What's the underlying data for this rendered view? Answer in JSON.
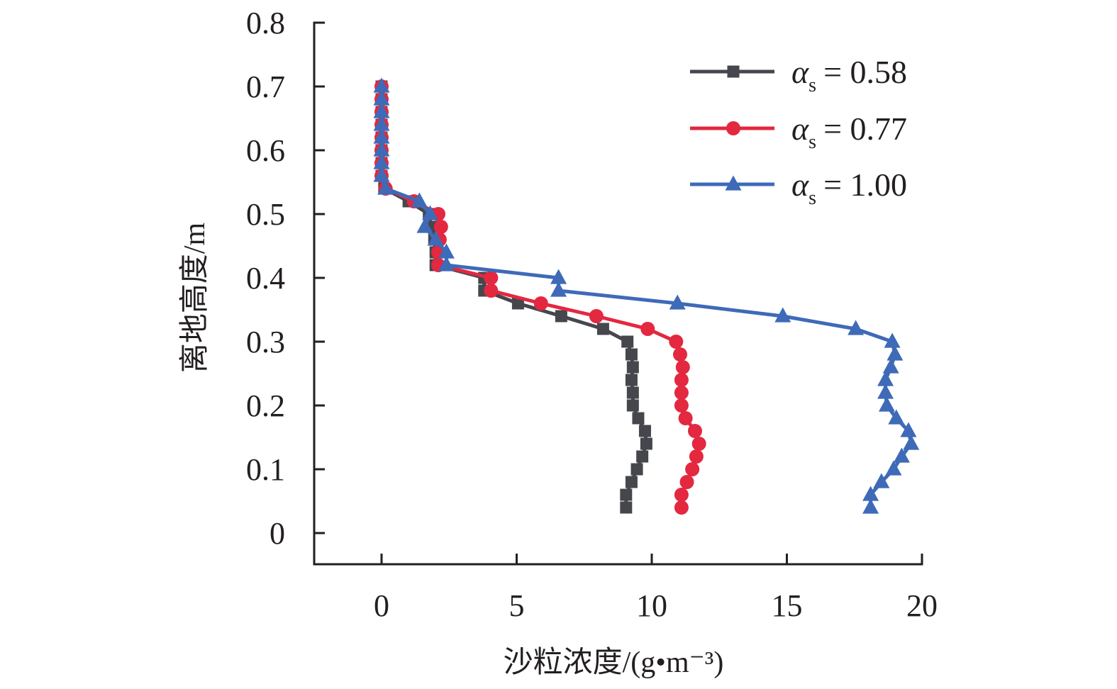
{
  "chart_data": {
    "type": "line",
    "title": "",
    "xlabel": "沙粒浓度/(g•m⁻³)",
    "ylabel": "离地高度/m",
    "xlim": [
      -2.5,
      20
    ],
    "ylim": [
      0,
      0.8
    ],
    "xticks": [
      0,
      5,
      10,
      15,
      20
    ],
    "xtick_labels": [
      "0",
      "5",
      "10",
      "15",
      "20"
    ],
    "yticks": [
      0,
      0.1,
      0.2,
      0.3,
      0.4,
      0.5,
      0.6,
      0.7,
      0.8
    ],
    "ytick_labels": [
      "0",
      "0.1",
      "0.2",
      "0.3",
      "0.4",
      "0.5",
      "0.6",
      "0.7",
      "0.8"
    ],
    "grid": false,
    "legend_position": "top-right",
    "heights": [
      0.7,
      0.68,
      0.66,
      0.64,
      0.62,
      0.6,
      0.58,
      0.56,
      0.54,
      0.52,
      0.5,
      0.48,
      0.46,
      0.44,
      0.42,
      0.4,
      0.38,
      0.36,
      0.34,
      0.32,
      0.3,
      0.28,
      0.26,
      0.24,
      0.22,
      0.2,
      0.18,
      0.16,
      0.14,
      0.12,
      0.1,
      0.08,
      0.06,
      0.04
    ],
    "series": [
      {
        "name": "αs = 0.58",
        "legend_symbol": "α",
        "legend_sub": "s",
        "legend_value": "= 0.58",
        "marker": "square",
        "color": "#45474d",
        "values": [
          0,
          0,
          0,
          0,
          0,
          0,
          0,
          0,
          0.1,
          1.0,
          1.75,
          1.85,
          1.95,
          2.0,
          2.0,
          3.8,
          3.8,
          5.05,
          6.65,
          8.2,
          9.1,
          9.25,
          9.3,
          9.25,
          9.3,
          9.3,
          9.5,
          9.75,
          9.8,
          9.65,
          9.45,
          9.25,
          9.05,
          9.05
        ]
      },
      {
        "name": "αs = 0.77",
        "legend_symbol": "α",
        "legend_sub": "s",
        "legend_value": "= 0.77",
        "marker": "circle",
        "color": "#e3283f",
        "values": [
          0,
          0,
          0,
          0,
          0,
          0,
          0,
          0,
          0.15,
          1.2,
          2.1,
          2.2,
          2.15,
          2.1,
          2.1,
          4.05,
          4.05,
          5.9,
          7.95,
          9.85,
          10.9,
          11.05,
          11.15,
          11.1,
          11.1,
          11.1,
          11.25,
          11.6,
          11.75,
          11.65,
          11.5,
          11.3,
          11.1,
          11.1
        ]
      },
      {
        "name": "αs = 1.00",
        "legend_symbol": "α",
        "legend_sub": "s",
        "legend_value": "= 1.00",
        "marker": "triangle",
        "color": "#3e6ab8",
        "values": [
          0,
          0,
          0,
          0,
          0,
          0,
          0,
          0,
          0.15,
          1.4,
          1.8,
          1.6,
          2.0,
          2.4,
          2.4,
          6.55,
          6.55,
          10.95,
          14.85,
          17.55,
          18.9,
          19.0,
          18.85,
          18.65,
          18.65,
          18.7,
          19.05,
          19.5,
          19.6,
          19.25,
          18.95,
          18.5,
          18.1,
          18.1
        ]
      }
    ]
  }
}
